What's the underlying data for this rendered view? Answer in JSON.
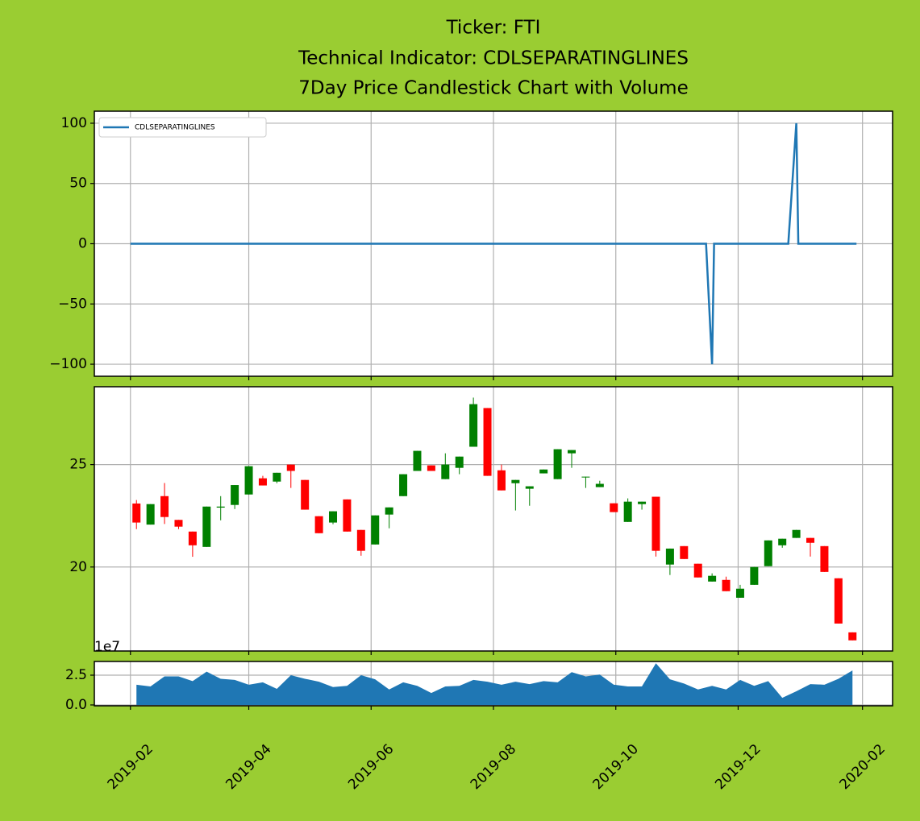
{
  "title": [
    "Ticker: FTI",
    "Technical Indicator: CDLSEPARATINGLINES",
    "7Day Price Candlestick Chart with Volume"
  ],
  "chart_data": [
    {
      "type": "line",
      "ylim": [
        -110,
        110
      ],
      "yticks": [
        100,
        50,
        0,
        {
          "value": -50,
          "label": "−50"
        },
        {
          "value": -100,
          "label": "−100"
        }
      ],
      "grid": true,
      "legend": "upper left",
      "series": [
        {
          "name": "CDLSEPARATINGLINES",
          "color": "#1f77b4",
          "x": [
            "2019-02-01",
            "2019-11-15",
            "2019-11-18",
            "2019-11-19",
            "2019-12-26",
            "2019-12-30",
            "2019-12-31",
            "2020-01-29"
          ],
          "values": [
            0,
            0,
            -100,
            0,
            0,
            100,
            0,
            0
          ]
        }
      ]
    },
    {
      "type": "candlestick",
      "ylim": [
        15.9,
        28.8
      ],
      "yticks": [
        20,
        25
      ],
      "grid": true,
      "up_color": "#008000",
      "down_color": "#ff0000",
      "x": [
        "2019-02-04",
        "2019-02-11",
        "2019-02-18",
        "2019-02-25",
        "2019-03-04",
        "2019-03-11",
        "2019-03-18",
        "2019-03-25",
        "2019-04-01",
        "2019-04-08",
        "2019-04-15",
        "2019-04-22",
        "2019-04-29",
        "2019-05-06",
        "2019-05-13",
        "2019-05-20",
        "2019-05-27",
        "2019-06-03",
        "2019-06-10",
        "2019-06-17",
        "2019-06-24",
        "2019-07-01",
        "2019-07-08",
        "2019-07-15",
        "2019-07-22",
        "2019-07-29",
        "2019-08-05",
        "2019-08-12",
        "2019-08-19",
        "2019-08-26",
        "2019-09-02",
        "2019-09-09",
        "2019-09-16",
        "2019-09-23",
        "2019-09-30",
        "2019-10-07",
        "2019-10-14",
        "2019-10-21",
        "2019-10-28",
        "2019-11-04",
        "2019-11-11",
        "2019-11-18",
        "2019-11-25",
        "2019-12-02",
        "2019-12-09",
        "2019-12-16",
        "2019-12-23",
        "2019-12-30",
        "2020-01-06",
        "2020-01-13",
        "2020-01-20",
        "2020-01-27"
      ],
      "open": [
        23.1,
        22.07,
        23.46,
        22.3,
        21.73,
        20.98,
        22.9,
        23.03,
        23.54,
        24.33,
        24.17,
        25.0,
        24.25,
        22.48,
        22.17,
        23.3,
        21.81,
        21.1,
        22.56,
        23.46,
        24.69,
        24.96,
        24.29,
        24.84,
        25.87,
        27.76,
        24.72,
        24.09,
        23.82,
        24.57,
        24.29,
        25.55,
        24.37,
        23.9,
        23.11,
        22.2,
        23.07,
        23.43,
        20.12,
        21.02,
        20.16,
        19.29,
        19.37,
        18.5,
        19.13,
        20.04,
        21.06,
        21.42,
        21.42,
        21.02,
        19.45,
        16.81
      ],
      "high": [
        23.27,
        23.07,
        24.1,
        22.3,
        21.73,
        22.95,
        23.46,
        24.0,
        24.92,
        24.45,
        24.6,
        25.0,
        24.25,
        22.48,
        22.72,
        23.3,
        21.81,
        22.52,
        22.91,
        24.53,
        25.67,
        24.96,
        25.55,
        25.39,
        28.27,
        27.76,
        25.0,
        24.25,
        23.94,
        24.76,
        25.75,
        25.71,
        24.41,
        24.21,
        23.11,
        23.35,
        23.19,
        23.43,
        20.9,
        21.02,
        20.16,
        19.69,
        19.53,
        19.13,
        20.0,
        21.3,
        21.38,
        21.81,
        21.42,
        21.02,
        19.45,
        16.81
      ],
      "low": [
        21.85,
        22.07,
        22.1,
        21.85,
        20.5,
        20.98,
        22.28,
        22.83,
        23.54,
        23.98,
        24.09,
        23.86,
        22.8,
        21.65,
        22.09,
        21.73,
        20.55,
        21.1,
        21.89,
        23.46,
        24.69,
        24.69,
        24.29,
        24.53,
        25.87,
        24.45,
        23.74,
        22.76,
        22.99,
        24.57,
        24.29,
        24.84,
        23.86,
        23.9,
        22.68,
        22.2,
        22.8,
        20.51,
        19.61,
        20.39,
        19.49,
        19.29,
        18.82,
        18.5,
        19.13,
        20.04,
        20.94,
        21.42,
        20.51,
        19.76,
        17.24,
        16.42
      ],
      "close": [
        22.17,
        23.07,
        22.44,
        21.97,
        21.06,
        22.95,
        22.95,
        24.0,
        24.92,
        23.98,
        24.6,
        24.69,
        22.8,
        21.65,
        22.72,
        21.73,
        20.79,
        22.52,
        22.91,
        24.53,
        25.67,
        24.69,
        25.0,
        25.39,
        27.95,
        24.45,
        23.74,
        24.25,
        23.94,
        24.76,
        25.75,
        25.71,
        24.41,
        24.06,
        22.68,
        23.19,
        23.19,
        20.79,
        20.9,
        20.39,
        19.49,
        19.57,
        18.82,
        18.94,
        20.0,
        21.3,
        21.38,
        21.81,
        21.18,
        19.76,
        17.24,
        16.42
      ]
    },
    {
      "type": "area",
      "ylim": [
        -0.07,
        3.65
      ],
      "yticks": [
        {
          "value": 0,
          "label": "0.0"
        },
        2.5
      ],
      "offset_label": "1e7",
      "grid": true,
      "color": "#1f77b4",
      "xlim": [
        "2019-01-14",
        "2020-02-16"
      ],
      "xticks": [
        "2019-02",
        "2019-04",
        "2019-06",
        "2019-08",
        "2019-10",
        "2019-12",
        "2020-02"
      ],
      "x": [
        "2019-02-04",
        "2019-02-11",
        "2019-02-18",
        "2019-02-25",
        "2019-03-04",
        "2019-03-11",
        "2019-03-18",
        "2019-03-25",
        "2019-04-01",
        "2019-04-08",
        "2019-04-15",
        "2019-04-22",
        "2019-04-29",
        "2019-05-06",
        "2019-05-13",
        "2019-05-20",
        "2019-05-27",
        "2019-06-03",
        "2019-06-10",
        "2019-06-17",
        "2019-06-24",
        "2019-07-01",
        "2019-07-08",
        "2019-07-15",
        "2019-07-22",
        "2019-07-29",
        "2019-08-05",
        "2019-08-12",
        "2019-08-19",
        "2019-08-26",
        "2019-09-02",
        "2019-09-09",
        "2019-09-16",
        "2019-09-23",
        "2019-09-30",
        "2019-10-07",
        "2019-10-14",
        "2019-10-21",
        "2019-10-28",
        "2019-11-04",
        "2019-11-11",
        "2019-11-18",
        "2019-11-25",
        "2019-12-02",
        "2019-12-09",
        "2019-12-16",
        "2019-12-23",
        "2019-12-30",
        "2020-01-06",
        "2020-01-13",
        "2020-01-20",
        "2020-01-27"
      ],
      "values": [
        1.7,
        1.55,
        2.4,
        2.4,
        2.0,
        2.8,
        2.2,
        2.1,
        1.7,
        1.9,
        1.35,
        2.5,
        2.2,
        1.95,
        1.5,
        1.6,
        2.5,
        2.15,
        1.3,
        1.9,
        1.6,
        1.0,
        1.55,
        1.6,
        2.1,
        1.95,
        1.7,
        1.95,
        1.75,
        2.0,
        1.9,
        2.75,
        2.4,
        2.55,
        1.7,
        1.55,
        1.55,
        3.5,
        2.15,
        1.8,
        1.3,
        1.6,
        1.3,
        2.1,
        1.6,
        2.0,
        0.6,
        1.15,
        1.75,
        1.7,
        2.2,
        2.9
      ]
    }
  ]
}
